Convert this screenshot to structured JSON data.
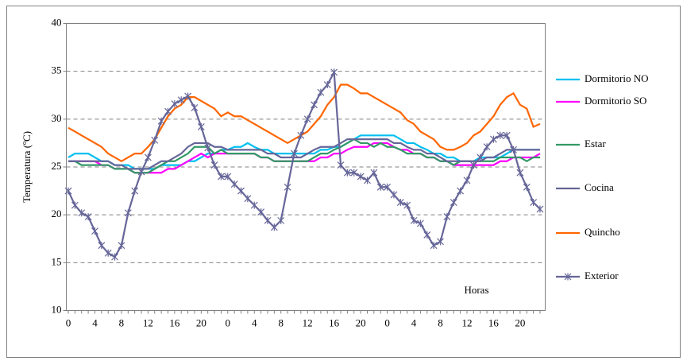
{
  "chart_data": {
    "type": "line",
    "categories": [
      "0",
      null,
      null,
      null,
      "4",
      null,
      null,
      null,
      "8",
      null,
      null,
      null,
      "12",
      null,
      null,
      null,
      "16",
      null,
      null,
      null,
      "20",
      null,
      null,
      null,
      "0",
      null,
      null,
      null,
      "4",
      null,
      null,
      null,
      "8",
      null,
      null,
      null,
      "12",
      null,
      null,
      null,
      "16",
      null,
      null,
      null,
      "20",
      null,
      null,
      null,
      "0",
      null,
      null,
      null,
      "4",
      null,
      null,
      null,
      "8",
      null,
      null,
      null,
      "12",
      null,
      null,
      null,
      "16",
      null,
      null,
      null,
      "20",
      null,
      null,
      null
    ],
    "ylabel": "Temperatura (ºC)",
    "annotation": "Horas",
    "ylim": [
      10,
      40
    ],
    "yticks": [
      10,
      15,
      20,
      25,
      30,
      35,
      40
    ],
    "grid": true,
    "legend": "right",
    "series": [
      {
        "name": "Dormitorio NO",
        "color": "#00c0f0",
        "values": [
          26,
          26.4,
          26.4,
          26.4,
          26,
          25.6,
          25.6,
          25.2,
          25.2,
          25.2,
          24.8,
          24.8,
          24.8,
          24.8,
          25.2,
          25.2,
          25.2,
          25.2,
          25.6,
          25.6,
          26,
          26.4,
          26.4,
          26.8,
          26.8,
          27.1,
          27.1,
          27.5,
          27.1,
          26.8,
          26.8,
          26.4,
          26.4,
          26.4,
          26.4,
          26.4,
          26.4,
          26.4,
          26.8,
          26.8,
          27.1,
          27.1,
          27.5,
          27.9,
          28.3,
          28.3,
          28.3,
          28.3,
          28.3,
          28.3,
          27.9,
          27.5,
          27.5,
          27.1,
          26.8,
          26.4,
          26.4,
          26,
          26,
          25.6,
          25.6,
          25.6,
          26,
          26,
          26,
          26,
          26.4,
          26.8,
          26.8,
          26.8,
          26.8,
          26.8
        ]
      },
      {
        "name": "Dormitorio SO",
        "color": "#ff00ff",
        "values": [
          25.6,
          25.6,
          25.6,
          25.6,
          25.6,
          25.2,
          25.2,
          24.8,
          24.8,
          24.8,
          24.4,
          24.4,
          24.4,
          24.4,
          24.4,
          24.8,
          24.8,
          25.2,
          25.6,
          26,
          26.4,
          26,
          26.4,
          26.4,
          26.4,
          26.4,
          26.4,
          26.4,
          26.4,
          26,
          26,
          25.6,
          25.6,
          25.6,
          25.6,
          25.6,
          25.6,
          25.6,
          26,
          26,
          26.4,
          26.4,
          26.8,
          27.1,
          27.1,
          27.1,
          27.5,
          27.5,
          27.5,
          27.1,
          26.8,
          26.8,
          26.4,
          26.4,
          26,
          26,
          25.6,
          25.6,
          25.2,
          25.2,
          25.2,
          25.2,
          25.2,
          25.2,
          25.2,
          25.6,
          25.6,
          26,
          26,
          26,
          26,
          26.4
        ]
      },
      {
        "name": "Estar",
        "color": "#339966",
        "values": [
          25.6,
          25.6,
          25.2,
          25.2,
          25.2,
          25.2,
          25.2,
          24.8,
          24.8,
          24.8,
          24.4,
          24.4,
          24.4,
          24.8,
          25.2,
          25.6,
          25.6,
          26,
          26.4,
          27.1,
          27.1,
          27.1,
          26.4,
          26.8,
          26.4,
          26.4,
          26.4,
          26.4,
          26.4,
          26,
          26,
          25.6,
          25.6,
          25.6,
          25.6,
          25.6,
          25.6,
          26,
          26.4,
          26.4,
          26.8,
          27.1,
          27.5,
          27.9,
          27.5,
          27.5,
          27.1,
          27.5,
          27.1,
          27.1,
          26.8,
          26.4,
          26.4,
          26.4,
          26,
          26,
          25.6,
          25.6,
          25.2,
          25.6,
          25.6,
          25.6,
          25.6,
          25.6,
          25.6,
          26,
          26,
          26,
          26,
          25.6,
          26,
          26
        ]
      },
      {
        "name": "Cocina",
        "color": "#666699",
        "values": [
          25.6,
          25.6,
          25.6,
          25.6,
          25.6,
          25.6,
          25.6,
          25.2,
          25.2,
          24.8,
          24.8,
          24.8,
          24.8,
          25.2,
          25.6,
          25.6,
          26,
          26.4,
          27.1,
          27.5,
          27.5,
          27.5,
          27.1,
          27.1,
          26.8,
          26.8,
          26.8,
          26.8,
          26.8,
          26.8,
          26.4,
          26.4,
          26,
          26,
          26,
          26,
          26.4,
          26.8,
          27.1,
          27.1,
          27.1,
          27.5,
          27.9,
          27.9,
          27.9,
          27.9,
          27.9,
          27.9,
          27.9,
          27.5,
          27.5,
          27.1,
          26.8,
          26.8,
          26.4,
          26.4,
          26,
          25.6,
          25.6,
          25.6,
          25.6,
          25.6,
          25.6,
          26,
          26,
          26.4,
          26.8,
          26.8,
          26.8,
          26.8,
          26.8,
          26.8
        ]
      },
      {
        "name": "Quincho",
        "color": "#ff6600",
        "values": [
          29.1,
          28.7,
          28.3,
          27.9,
          27.5,
          27.1,
          26.4,
          26,
          25.6,
          26,
          26.4,
          26.4,
          27.1,
          27.9,
          29.1,
          30.3,
          31.1,
          31.5,
          32.3,
          32.3,
          31.9,
          31.5,
          31.1,
          30.3,
          30.7,
          30.3,
          30.3,
          29.9,
          29.5,
          29.1,
          28.7,
          28.3,
          27.9,
          27.5,
          27.9,
          28.3,
          28.7,
          29.5,
          30.3,
          31.5,
          32.3,
          33.6,
          33.6,
          33.2,
          32.7,
          32.7,
          32.3,
          31.9,
          31.5,
          31.1,
          30.7,
          29.9,
          29.5,
          28.7,
          28.3,
          27.9,
          27.1,
          26.8,
          26.8,
          27.1,
          27.5,
          28.3,
          28.7,
          29.5,
          30.3,
          31.5,
          32.3,
          32.7,
          31.5,
          31.1,
          29.2,
          29.5
        ]
      },
      {
        "name": "Exterior",
        "color": "#666699",
        "marker": "asterisk",
        "values": [
          22.5,
          21,
          20.2,
          19.8,
          18.3,
          16.8,
          16,
          15.6,
          16.8,
          20.2,
          22.5,
          24.5,
          26,
          27.8,
          29.8,
          30.8,
          31.6,
          32,
          32.4,
          31.2,
          29.2,
          27,
          25.2,
          24,
          24,
          23.2,
          22.5,
          21.7,
          21,
          20.3,
          19.4,
          18.7,
          19.4,
          22.9,
          26.4,
          28.3,
          30,
          31.5,
          32.8,
          33.6,
          34.9,
          25.2,
          24.4,
          24.4,
          24,
          23.6,
          24.4,
          22.9,
          22.9,
          22.1,
          21.3,
          21,
          19.4,
          19.1,
          17.9,
          16.8,
          17.2,
          19.8,
          21.3,
          22.5,
          23.6,
          25.2,
          26,
          27.1,
          27.9,
          28.3,
          28.3,
          26.8,
          24.4,
          22.9,
          21.3,
          20.6
        ]
      }
    ]
  }
}
